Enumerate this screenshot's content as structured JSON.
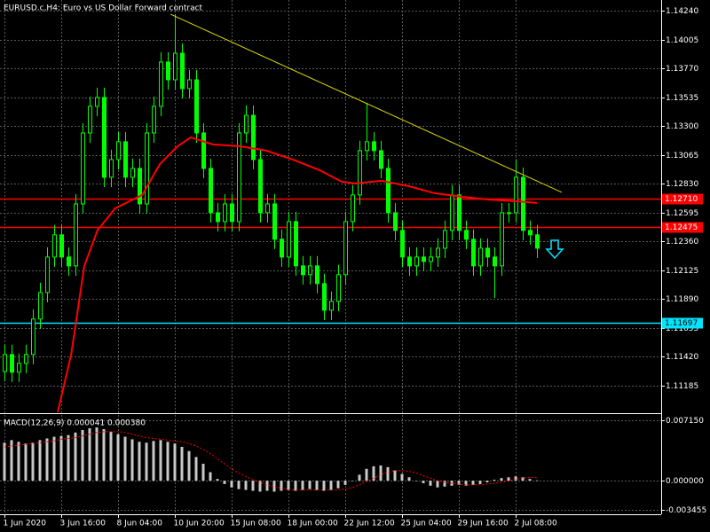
{
  "chart_data": {
    "type": "candlestick",
    "title": "EURUSD.c,H4:  Euro vs US Dollar Forward contract",
    "xlim": [
      -0.625,
      92.5
    ],
    "xticks": [
      {
        "value": 0,
        "label": "1 Jun 2020"
      },
      {
        "value": 8,
        "label": "3 Jun 16:00"
      },
      {
        "value": 16,
        "label": "8 Jun 04:00"
      },
      {
        "value": 24,
        "label": "10 Jun 20:00"
      },
      {
        "value": 32,
        "label": "15 Jun 08:00"
      },
      {
        "value": 40,
        "label": "18 Jun 00:00"
      },
      {
        "value": 48,
        "label": "22 Jun 12:00"
      },
      {
        "value": 56,
        "label": "25 Jun 04:00"
      },
      {
        "value": 64,
        "label": "29 Jun 16:00"
      },
      {
        "value": 72,
        "label": "2 Jul 08:00"
      }
    ],
    "ylim": [
      1.10961,
      1.14327
    ],
    "yticks": [
      {
        "value": 1.1424,
        "label": "1.14240"
      },
      {
        "value": 1.14005,
        "label": "1.14005"
      },
      {
        "value": 1.1377,
        "label": "1.13770"
      },
      {
        "value": 1.13535,
        "label": "1.13535"
      },
      {
        "value": 1.133,
        "label": "1.13300"
      },
      {
        "value": 1.13065,
        "label": "1.13065"
      },
      {
        "value": 1.1283,
        "label": "1.12830"
      },
      {
        "value": 1.12595,
        "label": "1.12595"
      },
      {
        "value": 1.1236,
        "label": "1.12360"
      },
      {
        "value": 1.12125,
        "label": "1.12125"
      },
      {
        "value": 1.1189,
        "label": "1.11890"
      },
      {
        "value": 1.11655,
        "label": "1.11655"
      },
      {
        "value": 1.1142,
        "label": "1.11420"
      },
      {
        "value": 1.11185,
        "label": "1.11185"
      }
    ],
    "grid": true,
    "candle_color": "#00ff00",
    "ohlc": {
      "open": [
        1.113,
        1.11439,
        1.11295,
        1.11367,
        1.11439,
        1.11728,
        1.11944,
        1.12233,
        1.12414,
        1.12233,
        1.12161,
        1.12666,
        1.13244,
        1.13461,
        1.13533,
        1.12883,
        1.13027,
        1.13172,
        1.12883,
        1.12955,
        1.12666,
        1.13244,
        1.13461,
        1.13822,
        1.13677,
        1.13894,
        1.13605,
        1.13677,
        1.13244,
        1.12955,
        1.12594,
        1.12522,
        1.12666,
        1.12522,
        1.13244,
        1.13388,
        1.13027,
        1.12594,
        1.12666,
        1.12378,
        1.12233,
        1.12522,
        1.12161,
        1.12089,
        1.12161,
        1.12017,
        1.118,
        1.11872,
        1.12089,
        1.12522,
        1.12739,
        1.131,
        1.13172,
        1.131,
        1.12955,
        1.12594,
        1.1245,
        1.12233,
        1.12161,
        1.12233,
        1.12197,
        1.12233,
        1.12305,
        1.1245,
        1.12739,
        1.1245,
        1.12378,
        1.12161,
        1.12305,
        1.12233,
        1.12161,
        1.12594,
        1.12594,
        1.12883,
        1.1245,
        1.12414
      ],
      "high": [
        1.11519,
        1.11519,
        1.11447,
        1.11519,
        1.11808,
        1.12024,
        1.12313,
        1.12494,
        1.12494,
        1.12313,
        1.12746,
        1.13324,
        1.13541,
        1.13613,
        1.13613,
        1.13107,
        1.13252,
        1.13252,
        1.13035,
        1.13035,
        1.13324,
        1.13541,
        1.13902,
        1.13902,
        1.14211,
        1.13974,
        1.13757,
        1.13757,
        1.13324,
        1.13035,
        1.12674,
        1.12746,
        1.12746,
        1.13324,
        1.13468,
        1.13468,
        1.13107,
        1.12746,
        1.12746,
        1.12458,
        1.12602,
        1.12602,
        1.12241,
        1.12241,
        1.12241,
        1.12097,
        1.11952,
        1.12169,
        1.12602,
        1.12819,
        1.1318,
        1.1349,
        1.13252,
        1.1318,
        1.13035,
        1.12674,
        1.1253,
        1.12313,
        1.12313,
        1.12313,
        1.12313,
        1.12385,
        1.1253,
        1.12819,
        1.12819,
        1.1253,
        1.12458,
        1.12385,
        1.12385,
        1.12313,
        1.12674,
        1.12674,
        1.1303,
        1.12963,
        1.1253,
        1.12494
      ],
      "low": [
        1.1122,
        1.11215,
        1.11215,
        1.11287,
        1.11359,
        1.11648,
        1.11864,
        1.12153,
        1.12153,
        1.12081,
        1.12081,
        1.12586,
        1.13164,
        1.13381,
        1.12803,
        1.12803,
        1.12947,
        1.12803,
        1.12803,
        1.12586,
        1.12586,
        1.13164,
        1.13381,
        1.13597,
        1.13597,
        1.13525,
        1.13525,
        1.13164,
        1.12875,
        1.12514,
        1.12442,
        1.12442,
        1.12442,
        1.12442,
        1.13164,
        1.12947,
        1.12514,
        1.12514,
        1.12298,
        1.12153,
        1.12153,
        1.12081,
        1.12009,
        1.12009,
        1.11937,
        1.1172,
        1.1172,
        1.11792,
        1.12009,
        1.12442,
        1.12659,
        1.1302,
        1.1302,
        1.12875,
        1.12514,
        1.1237,
        1.12153,
        1.12081,
        1.12081,
        1.12117,
        1.12117,
        1.12153,
        1.12225,
        1.1237,
        1.1237,
        1.12298,
        1.12081,
        1.12081,
        1.12153,
        1.119,
        1.12081,
        1.12514,
        1.12514,
        1.1237,
        1.12334,
        1.12225
      ],
      "close": [
        1.11439,
        1.11295,
        1.11367,
        1.11439,
        1.11728,
        1.11944,
        1.12233,
        1.12414,
        1.12233,
        1.12161,
        1.12666,
        1.13244,
        1.13461,
        1.13533,
        1.12883,
        1.13027,
        1.13172,
        1.12883,
        1.12955,
        1.12666,
        1.13244,
        1.13461,
        1.13822,
        1.13677,
        1.13894,
        1.13605,
        1.13677,
        1.13244,
        1.12955,
        1.12594,
        1.12522,
        1.12666,
        1.12522,
        1.13244,
        1.13388,
        1.13027,
        1.12594,
        1.12666,
        1.12378,
        1.12233,
        1.12522,
        1.12161,
        1.12089,
        1.12161,
        1.12017,
        1.118,
        1.11872,
        1.12089,
        1.12522,
        1.12739,
        1.131,
        1.13172,
        1.131,
        1.12955,
        1.12594,
        1.1245,
        1.12233,
        1.12161,
        1.12233,
        1.12197,
        1.12233,
        1.12305,
        1.1245,
        1.12739,
        1.1245,
        1.12378,
        1.12161,
        1.12305,
        1.12233,
        1.12161,
        1.12594,
        1.12594,
        1.12883,
        1.1245,
        1.12414,
        1.12305
      ]
    },
    "moving_average": {
      "color": "#ff0000",
      "x": [
        7.5,
        9.4,
        11.25,
        13.1,
        15.6,
        19.4,
        21.9,
        24.4,
        26.25,
        29.4,
        33.1,
        36.9,
        40.6,
        44.4,
        47.5,
        49.4,
        53.1,
        56.9,
        60.6,
        64.4,
        68.1,
        71.9,
        75
      ],
      "values": [
        1.1097,
        1.11439,
        1.12161,
        1.1245,
        1.1263,
        1.12739,
        1.12991,
        1.13136,
        1.13208,
        1.1315,
        1.13136,
        1.131,
        1.13027,
        1.12941,
        1.12847,
        1.12833,
        1.12854,
        1.12811,
        1.12753,
        1.12724,
        1.12702,
        1.12688,
        1.12674
      ]
    },
    "trendline": {
      "color": "#d8d800",
      "x": [
        23.4,
        78.5
      ],
      "values": [
        1.14211,
        1.1276
      ]
    },
    "hlines": [
      {
        "value": 1.1271,
        "label": "1.12710",
        "color": "#ff0000",
        "label_color": "#ffffff"
      },
      {
        "value": 1.12475,
        "label": "1.12475",
        "color": "#ff0000",
        "label_color": "#ffffff"
      },
      {
        "value": 1.11697,
        "label": "1.11697",
        "color": "#00e5ff",
        "label_color": "#000000"
      }
    ],
    "macd": {
      "title": "MACD(12,26,9) 0.000041 0.000380",
      "ylim": [
        -0.00398,
        0.00778
      ],
      "yticks": [
        {
          "value": 0.00715,
          "label": "0.007150"
        },
        {
          "value": 0,
          "label": "0.000000"
        },
        {
          "value": -0.003455,
          "label": "-0.003455"
        }
      ],
      "histogram": {
        "color": "#c8c8c8",
        "values": [
          0.0045,
          0.0048,
          0.0046,
          0.0044,
          0.0045,
          0.0048,
          0.005,
          0.0052,
          0.0053,
          0.0054,
          0.0057,
          0.006,
          0.0062,
          0.0063,
          0.0061,
          0.0058,
          0.0055,
          0.0052,
          0.0049,
          0.0046,
          0.0045,
          0.0047,
          0.0048,
          0.0046,
          0.0044,
          0.004,
          0.0035,
          0.0028,
          0.002,
          0.001,
          0.0002,
          -0.0004,
          -0.0008,
          -0.001,
          -0.0011,
          -0.0012,
          -0.0013,
          -0.0012,
          -0.0013,
          -0.0012,
          -0.0011,
          -0.0012,
          -0.0011,
          -0.001,
          -0.0011,
          -0.0012,
          -0.0011,
          -0.0009,
          -0.0005,
          0,
          0.0007,
          0.0014,
          0.0017,
          0.0018,
          0.0016,
          0.0012,
          0.0008,
          0.0004,
          0,
          -0.0003,
          -0.0006,
          -0.0008,
          -0.0007,
          -0.0006,
          -0.0005,
          -0.0006,
          -0.0005,
          -0.0004,
          -0.0002,
          0.0001,
          0.0003,
          0.0004,
          0.0005,
          0.0004,
          0.0002,
          4.1e-05
        ]
      },
      "signal": {
        "color": "#ff0000",
        "values": [
          0.004,
          0.0041,
          0.0042,
          0.0043,
          0.0044,
          0.0045,
          0.0046,
          0.0047,
          0.0049,
          0.005,
          0.0051,
          0.0053,
          0.0055,
          0.0057,
          0.0058,
          0.0058,
          0.0058,
          0.0057,
          0.0055,
          0.0053,
          0.0051,
          0.005,
          0.0049,
          0.0048,
          0.0047,
          0.0046,
          0.0044,
          0.0041,
          0.0037,
          0.0032,
          0.0026,
          0.002,
          0.0014,
          0.0009,
          0.0005,
          0.0001,
          -0.0002,
          -0.0005,
          -0.0007,
          -0.0009,
          -0.001,
          -0.0011,
          -0.0011,
          -0.0011,
          -0.0011,
          -0.0011,
          -0.0011,
          -0.0011,
          -0.001,
          -0.0008,
          -0.0005,
          -0.0001,
          0.0003,
          0.0007,
          0.001,
          0.0012,
          0.0012,
          0.0011,
          0.0009,
          0.0006,
          0.0003,
          0,
          -0.0002,
          -0.0003,
          -0.0004,
          -0.0005,
          -0.0005,
          -0.0005,
          -0.0004,
          -0.0003,
          -0.0002,
          0,
          0.0002,
          0.0003,
          0.0004,
          0.00038
        ]
      }
    }
  }
}
